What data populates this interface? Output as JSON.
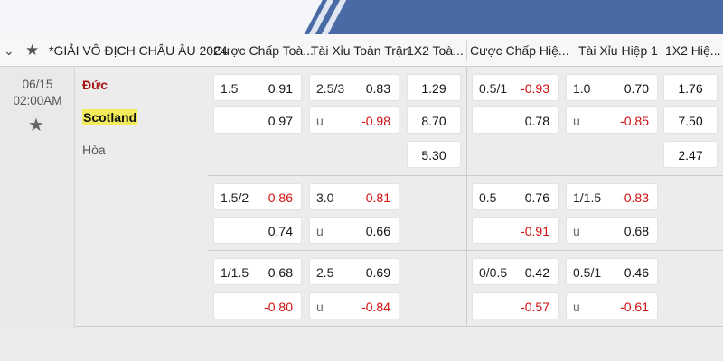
{
  "header": {
    "chevron_icon": "chevron-down-icon",
    "league": "*GIẢI VÔ ĐỊCH CHÂU ÂU 2024",
    "columns": [
      "Cược Chấp Toà...",
      "Tài Xỉu Toàn Trận",
      "1X2 Toà...",
      "Cược Chấp Hiệ...",
      "Tài Xỉu Hiệp 1",
      "1X2 Hiệ..."
    ]
  },
  "match": {
    "date": "06/15",
    "time": "02:00AM",
    "home": "Đức",
    "away": "Scotland",
    "draw": "Hòa"
  },
  "colors": {
    "topbar": "#4a6aa6",
    "home_team": "#a51212",
    "negative_odds": "#d10f0f",
    "highlight": "#f3ec5a"
  },
  "odds": {
    "g1": {
      "ah_ft": {
        "line": "1.5",
        "home": "0.91",
        "away": "0.97"
      },
      "ou_ft": {
        "line": "2.5/3",
        "over": "0.83",
        "under_label": "u",
        "under": "-0.98"
      },
      "x12_ft": {
        "home": "1.29",
        "away": "8.70",
        "draw": "5.30"
      },
      "ah_h1": {
        "line": "0.5/1",
        "home": "-0.93",
        "away": "0.78"
      },
      "ou_h1": {
        "line": "1.0",
        "over": "0.70",
        "under_label": "u",
        "under": "-0.85"
      },
      "x12_h1": {
        "home": "1.76",
        "away": "7.50",
        "draw": "2.47"
      }
    },
    "g2": {
      "ah_ft": {
        "line": "1.5/2",
        "home": "-0.86",
        "away": "0.74"
      },
      "ou_ft": {
        "line": "3.0",
        "over": "-0.81",
        "under_label": "u",
        "under": "0.66"
      },
      "ah_h1": {
        "line": "0.5",
        "home": "0.76",
        "away": "-0.91"
      },
      "ou_h1": {
        "line": "1/1.5",
        "over": "-0.83",
        "under_label": "u",
        "under": "0.68"
      }
    },
    "g3": {
      "ah_ft": {
        "line": "1/1.5",
        "home": "0.68",
        "away": "-0.80"
      },
      "ou_ft": {
        "line": "2.5",
        "over": "0.69",
        "under_label": "u",
        "under": "-0.84"
      },
      "ah_h1": {
        "line": "0/0.5",
        "home": "0.42",
        "away": "-0.57"
      },
      "ou_h1": {
        "line": "0.5/1",
        "over": "0.46",
        "under_label": "u",
        "under": "-0.61"
      }
    }
  }
}
